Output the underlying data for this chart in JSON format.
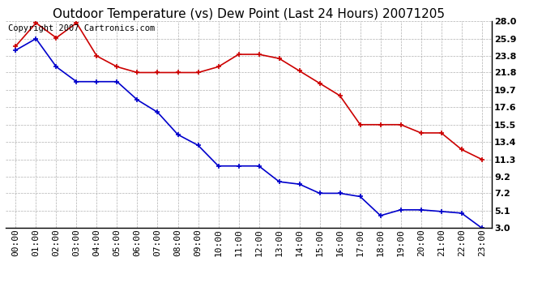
{
  "title": "Outdoor Temperature (vs) Dew Point (Last 24 Hours) 20071205",
  "copyright_text": "Copyright 2007 Cartronics.com",
  "hours": [
    "00:00",
    "01:00",
    "02:00",
    "03:00",
    "04:00",
    "05:00",
    "06:00",
    "07:00",
    "08:00",
    "09:00",
    "10:00",
    "11:00",
    "12:00",
    "13:00",
    "14:00",
    "15:00",
    "16:00",
    "17:00",
    "18:00",
    "19:00",
    "20:00",
    "21:00",
    "22:00",
    "23:00"
  ],
  "temp_red": [
    25.0,
    27.8,
    26.0,
    27.8,
    23.8,
    22.5,
    21.8,
    21.8,
    21.8,
    21.8,
    22.5,
    24.0,
    24.0,
    23.5,
    22.0,
    20.5,
    19.0,
    15.5,
    15.5,
    15.5,
    14.5,
    14.5,
    12.5,
    11.3
  ],
  "dew_blue": [
    24.5,
    25.9,
    22.5,
    20.7,
    20.7,
    20.7,
    18.5,
    17.0,
    14.3,
    13.0,
    10.5,
    10.5,
    10.5,
    8.6,
    8.3,
    7.2,
    7.2,
    6.8,
    4.5,
    5.2,
    5.2,
    5.0,
    4.8,
    3.0
  ],
  "ylim_min": 3.0,
  "ylim_max": 28.0,
  "yticks": [
    3.0,
    5.1,
    7.2,
    9.2,
    11.3,
    13.4,
    15.5,
    17.6,
    19.7,
    21.8,
    23.8,
    25.9,
    28.0
  ],
  "red_color": "#cc0000",
  "blue_color": "#0000cc",
  "grid_color": "#b0b0b0",
  "bg_color": "#ffffff",
  "title_fontsize": 11,
  "tick_fontsize": 8,
  "copyright_fontsize": 7.5
}
